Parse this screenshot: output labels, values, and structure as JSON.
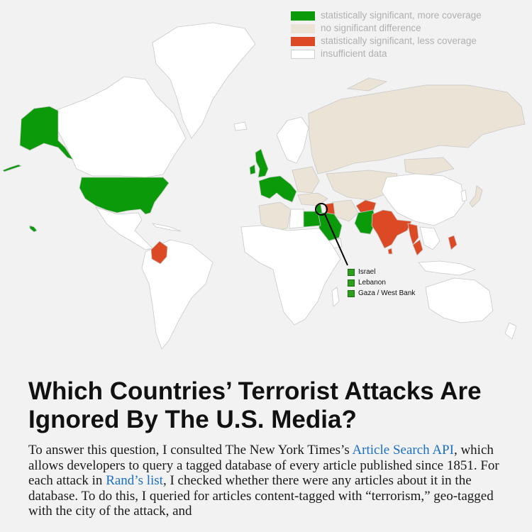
{
  "legend": [
    {
      "label": "statistically significant, more coverage",
      "color": "#0a9a0a"
    },
    {
      "label": "no significant difference",
      "color": "#ebe3d6"
    },
    {
      "label": "statistically significant, less coverage",
      "color": "#dc4a25"
    },
    {
      "label": "insufficient data",
      "color": "#ffffff"
    }
  ],
  "callout": {
    "items": [
      "Israel",
      "Lebanon",
      "Gaza / West Bank"
    ]
  },
  "map": {
    "colors": {
      "more": "#0a9a0a",
      "none": "#ebe3d6",
      "less": "#dc4a25",
      "insufficient": "#ffffff",
      "border": "#c9c9c9"
    }
  },
  "article": {
    "title": "Which Countries’ Terrorist Attacks Are Ignored By The U.S. Media?",
    "p1_a": "To answer this question, I consulted The New York Times’s ",
    "link1": "Article Search API",
    "p1_b": ", which allows developers to query a tagged database of every article published since 1851. For each attack in ",
    "link2": "Rand’s list",
    "p1_c": ", I checked whether there were any articles about it in the database. To do this, I queried for articles content-tagged with “terrorism,” geo-tagged with the city of the attack, and"
  }
}
